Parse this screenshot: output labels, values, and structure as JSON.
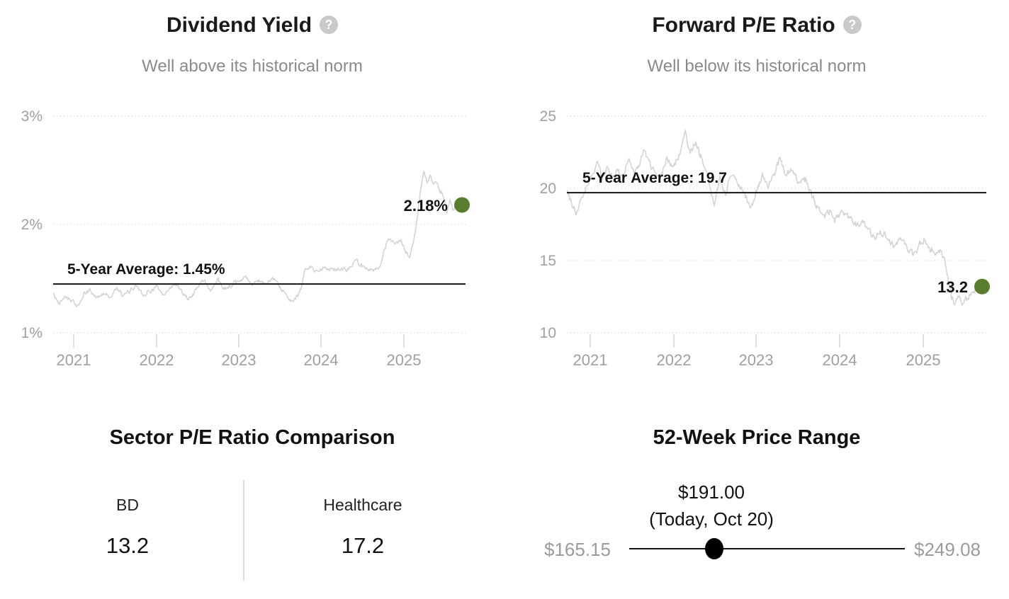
{
  "colors": {
    "accent_green": "#5a7d2d",
    "series_gray": "#d4d4d4",
    "grid_gray": "#e2e2e2",
    "tick_gray": "#d8d8d8",
    "axis_text_gray": "#a0a0a0",
    "text_dark": "#111111",
    "subtitle_gray": "#8a8a8a",
    "help_icon_gray": "#c9c9c9",
    "divider_gray": "#dedede",
    "muted_label_gray": "#9b9b9b"
  },
  "panels": {
    "dividend_yield": {
      "title": "Dividend Yield",
      "help_icon": "?",
      "subtitle": "Well above its historical norm"
    },
    "forward_pe": {
      "title": "Forward P/E Ratio",
      "help_icon": "?",
      "subtitle": "Well below its historical norm"
    },
    "sector_pe": {
      "title": "Sector P/E Ratio Comparison",
      "columns": [
        {
          "label": "BD",
          "value": "13.2"
        },
        {
          "label": "Healthcare",
          "value": "17.2"
        }
      ]
    },
    "price_range": {
      "title": "52-Week Price Range",
      "current_price_label": "$191.00",
      "current_date_label": "(Today, Oct 20)",
      "low_label": "$165.15",
      "high_label": "$249.08",
      "low_value": 165.15,
      "high_value": 249.08,
      "current_value": 191.0
    }
  },
  "chart_data": [
    {
      "type": "line",
      "title": "Dividend Yield",
      "subtitle": "Well above its historical norm",
      "xlabel": "",
      "ylabel": "",
      "x_ticks": [
        "2021",
        "2022",
        "2023",
        "2024",
        "2025"
      ],
      "y_ticks": [
        "3%",
        "2%",
        "1%"
      ],
      "y_tick_values": [
        3,
        2,
        1
      ],
      "ylim": [
        0.95,
        3.1
      ],
      "xlim": [
        2020.75,
        2025.75
      ],
      "grid": true,
      "average_value": 1.45,
      "average_label": "5-Year Average: 1.45%",
      "current_value": 2.18,
      "current_label": "2.18%",
      "x": [
        2020.75,
        2020.82,
        2020.9,
        2020.97,
        2021.05,
        2021.12,
        2021.2,
        2021.28,
        2021.36,
        2021.44,
        2021.52,
        2021.6,
        2021.68,
        2021.76,
        2021.84,
        2021.92,
        2022.0,
        2022.08,
        2022.16,
        2022.25,
        2022.33,
        2022.42,
        2022.5,
        2022.58,
        2022.66,
        2022.75,
        2022.83,
        2022.92,
        2023.0,
        2023.08,
        2023.16,
        2023.25,
        2023.33,
        2023.42,
        2023.5,
        2023.58,
        2023.65,
        2023.72,
        2023.76,
        2023.8,
        2023.88,
        2023.96,
        2024.05,
        2024.13,
        2024.21,
        2024.3,
        2024.38,
        2024.42,
        2024.46,
        2024.55,
        2024.63,
        2024.72,
        2024.76,
        2024.82,
        2024.9,
        2024.96,
        2025.02,
        2025.07,
        2025.12,
        2025.16,
        2025.2,
        2025.24,
        2025.28,
        2025.32,
        2025.36,
        2025.4,
        2025.44,
        2025.48,
        2025.52,
        2025.56,
        2025.6,
        2025.64
      ],
      "y": [
        1.36,
        1.27,
        1.35,
        1.3,
        1.24,
        1.35,
        1.39,
        1.32,
        1.37,
        1.33,
        1.41,
        1.33,
        1.39,
        1.44,
        1.36,
        1.38,
        1.43,
        1.34,
        1.4,
        1.46,
        1.36,
        1.31,
        1.43,
        1.48,
        1.39,
        1.49,
        1.41,
        1.44,
        1.47,
        1.52,
        1.43,
        1.49,
        1.45,
        1.49,
        1.41,
        1.35,
        1.29,
        1.34,
        1.42,
        1.58,
        1.61,
        1.57,
        1.62,
        1.57,
        1.6,
        1.57,
        1.64,
        1.69,
        1.62,
        1.6,
        1.57,
        1.61,
        1.78,
        1.86,
        1.81,
        1.86,
        1.75,
        1.7,
        1.85,
        2.05,
        2.3,
        2.49,
        2.38,
        2.44,
        2.35,
        2.41,
        2.31,
        2.26,
        2.1,
        2.22,
        2.14,
        2.18
      ]
    },
    {
      "type": "line",
      "title": "Forward P/E Ratio",
      "subtitle": "Well below its historical norm",
      "xlabel": "",
      "ylabel": "",
      "x_ticks": [
        "2021",
        "2022",
        "2023",
        "2024",
        "2025"
      ],
      "y_ticks": [
        "25",
        "20",
        "15",
        "10"
      ],
      "y_tick_values": [
        25,
        20,
        15,
        10
      ],
      "ylim": [
        9.8,
        25.3
      ],
      "xlim": [
        2020.72,
        2025.72
      ],
      "grid": true,
      "average_value": 19.7,
      "average_label": "5-Year Average: 19.7",
      "current_value": 13.2,
      "current_label": "13.2",
      "x": [
        2020.72,
        2020.78,
        2020.84,
        2020.9,
        2020.97,
        2021.03,
        2021.08,
        2021.14,
        2021.2,
        2021.27,
        2021.33,
        2021.4,
        2021.46,
        2021.52,
        2021.58,
        2021.65,
        2021.72,
        2021.78,
        2021.85,
        2021.92,
        2022.0,
        2022.07,
        2022.14,
        2022.2,
        2022.27,
        2022.34,
        2022.42,
        2022.49,
        2022.56,
        2022.63,
        2022.7,
        2022.78,
        2022.85,
        2022.92,
        2023.0,
        2023.07,
        2023.14,
        2023.2,
        2023.28,
        2023.35,
        2023.42,
        2023.5,
        2023.57,
        2023.64,
        2023.72,
        2023.8,
        2023.88,
        2023.95,
        2024.03,
        2024.1,
        2024.18,
        2024.26,
        2024.34,
        2024.42,
        2024.5,
        2024.58,
        2024.65,
        2024.72,
        2024.8,
        2024.88,
        2024.95,
        2025.02,
        2025.08,
        2025.14,
        2025.2,
        2025.26,
        2025.3,
        2025.34,
        2025.38,
        2025.43,
        2025.47,
        2025.52,
        2025.56,
        2025.6,
        2025.65
      ],
      "y": [
        19.9,
        18.9,
        18.3,
        19.5,
        20.3,
        21.0,
        22.0,
        20.7,
        21.5,
        20.8,
        21.2,
        20.6,
        22.2,
        21.0,
        21.6,
        22.7,
        21.6,
        21.2,
        20.7,
        22.0,
        21.4,
        22.3,
        23.7,
        22.3,
        23.3,
        22.0,
        20.8,
        18.8,
        20.7,
        19.7,
        21.0,
        20.2,
        19.7,
        18.6,
        19.9,
        20.8,
        19.9,
        21.0,
        22.0,
        20.7,
        21.4,
        20.3,
        20.8,
        19.9,
        18.8,
        18.1,
        18.4,
        17.8,
        18.3,
        17.9,
        17.4,
        17.7,
        17.1,
        16.7,
        17.0,
        16.4,
        16.0,
        16.4,
        15.8,
        15.4,
        16.0,
        16.5,
        15.8,
        15.4,
        15.7,
        14.9,
        13.5,
        12.4,
        12.0,
        12.5,
        11.9,
        12.3,
        12.6,
        12.9,
        13.2
      ]
    },
    {
      "type": "table",
      "title": "Sector P/E Ratio Comparison",
      "categories": [
        "BD",
        "Healthcare"
      ],
      "values": [
        13.2,
        17.2
      ]
    },
    {
      "type": "table",
      "display_hint": "range-slider",
      "title": "52-Week Price Range",
      "categories": [
        "52-week low",
        "Today, Oct 20",
        "52-week high"
      ],
      "values": [
        165.15,
        191.0,
        249.08
      ]
    }
  ]
}
